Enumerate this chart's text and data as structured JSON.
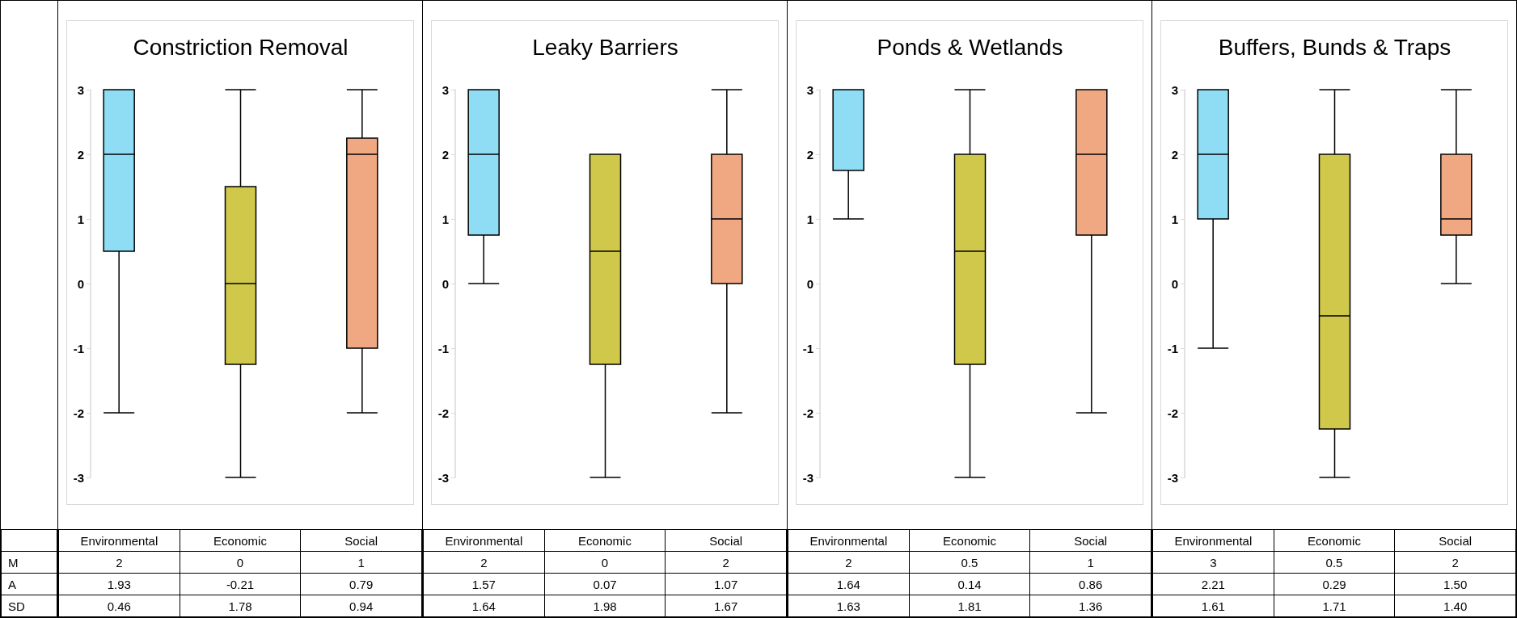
{
  "chart_data": [
    {
      "type": "other",
      "annotations": [
        "M",
        "A",
        "SD"
      ]
    },
    {
      "type": "box",
      "title": "Constriction Removal",
      "categories": [
        "Environmental",
        "Economic",
        "Social"
      ],
      "colors": [
        "#8fdcf5",
        "#cfc84a",
        "#f0a882"
      ],
      "ylim": [
        -3,
        3
      ],
      "yticks": [
        -3,
        -2,
        -1,
        0,
        1,
        2,
        3
      ],
      "grid": false,
      "boxes": [
        {
          "low": -2,
          "q1": 0.5,
          "median": 2,
          "q3": 3,
          "high": 3
        },
        {
          "low": -3,
          "q1": -1.25,
          "median": 0,
          "q3": 1.5,
          "high": 3
        },
        {
          "low": -2,
          "q1": -1,
          "median": 2,
          "q3": 2.25,
          "high": 3
        }
      ],
      "annotations": [
        "2",
        "0",
        "1",
        "1.93",
        "-0.21",
        "0.79",
        "0.46",
        "1.78",
        "0.94"
      ]
    },
    {
      "type": "box",
      "title": "Leaky Barriers",
      "categories": [
        "Environmental",
        "Economic",
        "Social"
      ],
      "colors": [
        "#8fdcf5",
        "#cfc84a",
        "#f0a882"
      ],
      "ylim": [
        -3,
        3
      ],
      "yticks": [
        -3,
        -2,
        -1,
        0,
        1,
        2,
        3
      ],
      "grid": false,
      "boxes": [
        {
          "low": 0,
          "q1": 0.75,
          "median": 2,
          "q3": 3,
          "high": 3
        },
        {
          "low": -3,
          "q1": -1.25,
          "median": 0.5,
          "q3": 2,
          "high": 2
        },
        {
          "low": -2,
          "q1": 0,
          "median": 1,
          "q3": 2,
          "high": 3
        }
      ],
      "annotations": [
        "2",
        "0",
        "2",
        "1.57",
        "0.07",
        "1.07",
        "1.64",
        "1.98",
        "1.67"
      ]
    },
    {
      "type": "box",
      "title": "Ponds & Wetlands",
      "categories": [
        "Environmental",
        "Economic",
        "Social"
      ],
      "colors": [
        "#8fdcf5",
        "#cfc84a",
        "#f0a882"
      ],
      "ylim": [
        -3,
        3
      ],
      "yticks": [
        -3,
        -2,
        -1,
        0,
        1,
        2,
        3
      ],
      "grid": false,
      "boxes": [
        {
          "low": 1,
          "q1": 1.75,
          "median": 3,
          "q3": 3,
          "high": 3
        },
        {
          "low": -3,
          "q1": -1.25,
          "median": 0.5,
          "q3": 2,
          "high": 3
        },
        {
          "low": -2,
          "q1": 0.75,
          "median": 2,
          "q3": 3,
          "high": 3
        }
      ],
      "annotations": [
        "2",
        "0.5",
        "1",
        "1.64",
        "0.14",
        "0.86",
        "1.63",
        "1.81",
        "1.36"
      ]
    },
    {
      "type": "box",
      "title": "Buffers, Bunds & Traps",
      "categories": [
        "Environmental",
        "Economic",
        "Social"
      ],
      "colors": [
        "#8fdcf5",
        "#cfc84a",
        "#f0a882"
      ],
      "ylim": [
        -3,
        3
      ],
      "yticks": [
        -3,
        -2,
        -1,
        0,
        1,
        2,
        3
      ],
      "grid": false,
      "boxes": [
        {
          "low": -1,
          "q1": 1,
          "median": 2,
          "q3": 3,
          "high": 3
        },
        {
          "low": -3,
          "q1": -2.25,
          "median": -0.5,
          "q3": 2,
          "high": 3
        },
        {
          "low": 0,
          "q1": 0.75,
          "median": 1,
          "q3": 2,
          "high": 3
        }
      ],
      "annotations": [
        "3",
        "0.5",
        "2",
        "2.21",
        "0.29",
        "1.50",
        "1.61",
        "1.71",
        "1.40"
      ]
    }
  ]
}
